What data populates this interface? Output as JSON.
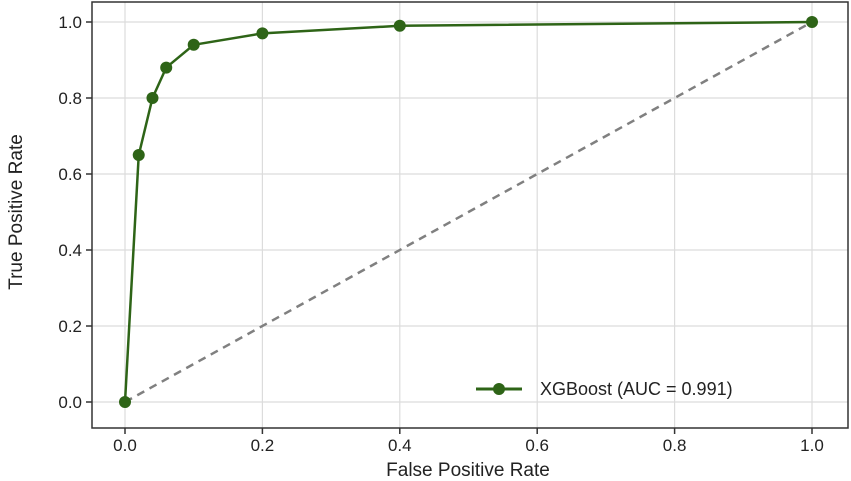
{
  "chart_data": {
    "type": "line",
    "title": "",
    "xlabel": "False Positive Rate",
    "ylabel": "True Positive Rate",
    "xlim": [
      0,
      1
    ],
    "ylim": [
      0,
      1
    ],
    "x_ticks": [
      "0.0",
      "0.2",
      "0.4",
      "0.6",
      "0.8",
      "1.0"
    ],
    "y_ticks": [
      "0.0",
      "0.2",
      "0.4",
      "0.6",
      "0.8",
      "1.0"
    ],
    "grid": true,
    "legend_position": "bottom-right",
    "series": [
      {
        "name": "XGBoost (AUC = 0.991)",
        "color": "#2e6417",
        "marker": "circle",
        "x": [
          0.0,
          0.02,
          0.04,
          0.06,
          0.1,
          0.2,
          0.4,
          1.0
        ],
        "y": [
          0.0,
          0.65,
          0.8,
          0.88,
          0.94,
          0.97,
          0.99,
          1.0
        ]
      }
    ],
    "reference_line": {
      "style": "dashed",
      "color": "#808080",
      "x": [
        0,
        1
      ],
      "y": [
        0,
        1
      ]
    }
  }
}
